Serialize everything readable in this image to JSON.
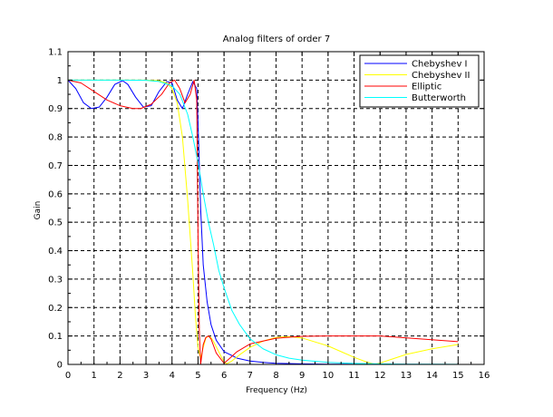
{
  "chart_data": {
    "type": "line",
    "title": "Analog filters of order 7",
    "xlabel": "Frequency (Hz)",
    "ylabel": "Gain",
    "xlim": [
      0,
      16
    ],
    "ylim": [
      0,
      1.1
    ],
    "xticks": [
      "0",
      "1",
      "2",
      "3",
      "4",
      "5",
      "6",
      "7",
      "8",
      "9",
      "10",
      "11",
      "12",
      "13",
      "14",
      "15",
      "16"
    ],
    "yticks": [
      "0",
      "0.1",
      "0.2",
      "0.3",
      "0.4",
      "0.5",
      "0.6",
      "0.7",
      "0.8",
      "0.9",
      "1",
      "1.1"
    ],
    "grid": true,
    "grid_style": "dashed",
    "legend_position": "top-right",
    "series": [
      {
        "name": "Chebyshev I",
        "color": "#0000ff",
        "x": [
          0,
          0.3,
          0.6,
          0.9,
          1.2,
          1.5,
          1.8,
          2.1,
          2.3,
          2.6,
          2.9,
          3.2,
          3.5,
          3.8,
          4.0,
          4.2,
          4.4,
          4.6,
          4.8,
          4.95,
          5.0,
          5.1,
          5.2,
          5.35,
          5.5,
          5.7,
          6.0,
          6.5,
          7.0,
          7.5,
          8.0,
          9.0,
          10.0,
          12.0,
          15.0
        ],
        "y": [
          1.0,
          0.97,
          0.92,
          0.9,
          0.905,
          0.94,
          0.985,
          0.998,
          0.985,
          0.94,
          0.905,
          0.91,
          0.96,
          0.995,
          0.99,
          0.93,
          0.9,
          0.95,
          0.995,
          0.97,
          0.85,
          0.55,
          0.35,
          0.22,
          0.14,
          0.085,
          0.045,
          0.022,
          0.012,
          0.007,
          0.004,
          0.002,
          0.001,
          0.0005,
          0.0002
        ]
      },
      {
        "name": "Chebyshev II",
        "color": "#ffff00",
        "x": [
          0,
          1.0,
          2.0,
          3.0,
          3.5,
          3.8,
          4.0,
          4.2,
          4.4,
          4.6,
          4.8,
          4.9,
          5.0,
          5.1,
          5.2,
          5.3,
          5.4,
          5.5,
          5.6,
          5.7,
          5.8,
          5.9,
          6.0,
          6.1,
          6.3,
          6.6,
          7.0,
          7.5,
          8.0,
          8.5,
          9.0,
          10.0,
          10.5,
          11.0,
          11.5,
          11.8,
          12.0,
          12.5,
          13.0,
          14.0,
          15.0
        ],
        "y": [
          1.0,
          1.0,
          1.0,
          1.0,
          0.998,
          0.99,
          0.97,
          0.92,
          0.8,
          0.58,
          0.32,
          0.17,
          0.06,
          0.02,
          0.06,
          0.092,
          0.1,
          0.094,
          0.08,
          0.062,
          0.044,
          0.026,
          0.01,
          0.002,
          0.012,
          0.034,
          0.06,
          0.082,
          0.095,
          0.098,
          0.093,
          0.065,
          0.045,
          0.025,
          0.008,
          0.001,
          0.005,
          0.02,
          0.035,
          0.055,
          0.07
        ]
      },
      {
        "name": "Elliptic",
        "color": "#ff0000",
        "x": [
          0,
          0.5,
          1.0,
          1.5,
          2.0,
          2.5,
          2.8,
          3.2,
          3.6,
          3.9,
          4.1,
          4.3,
          4.5,
          4.7,
          4.85,
          4.95,
          5.0,
          5.05,
          5.1,
          5.15,
          5.2,
          5.3,
          5.4,
          5.5,
          5.6,
          5.7,
          6.0,
          6.2,
          6.5,
          7.0,
          8.0,
          9.0,
          10.0,
          12.0,
          15.0
        ],
        "y": [
          1.0,
          0.99,
          0.96,
          0.93,
          0.91,
          0.9,
          0.9,
          0.915,
          0.95,
          0.99,
          1.0,
          0.97,
          0.92,
          0.95,
          1.0,
          0.93,
          0.45,
          0.12,
          0.0,
          0.035,
          0.07,
          0.095,
          0.1,
          0.09,
          0.065,
          0.04,
          0.004,
          0.02,
          0.045,
          0.072,
          0.092,
          0.099,
          0.1,
          0.1,
          0.08
        ]
      },
      {
        "name": "Butterworth",
        "color": "#00ffff",
        "x": [
          0,
          1.0,
          2.0,
          3.0,
          3.5,
          4.0,
          4.3,
          4.6,
          4.8,
          5.0,
          5.2,
          5.4,
          5.6,
          5.8,
          6.0,
          6.3,
          6.6,
          7.0,
          7.5,
          8.0,
          8.5,
          9.0,
          10.0,
          11.0,
          12.0,
          13.0,
          14.0,
          15.0
        ],
        "y": [
          1.0,
          1.0,
          1.0,
          0.999,
          0.995,
          0.98,
          0.95,
          0.88,
          0.8,
          0.71,
          0.6,
          0.5,
          0.42,
          0.33,
          0.27,
          0.19,
          0.14,
          0.09,
          0.055,
          0.034,
          0.022,
          0.015,
          0.007,
          0.0035,
          0.0019,
          0.001,
          0.0006,
          0.0004
        ]
      }
    ]
  }
}
